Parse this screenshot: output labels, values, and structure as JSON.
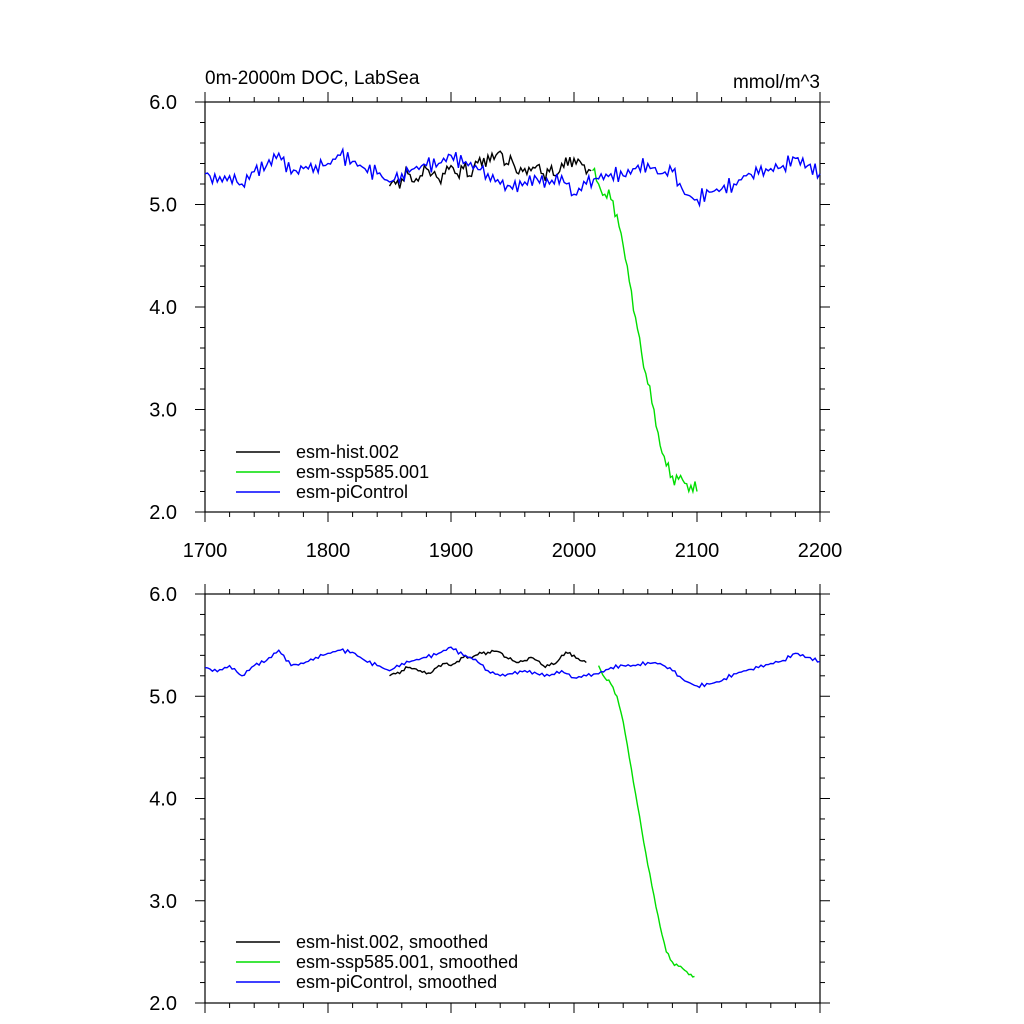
{
  "chart_data": [
    {
      "type": "line",
      "panel": "top",
      "title": "0m-2000m DOC, LabSea",
      "units": "mmol/m^3",
      "xlabel": "",
      "ylabel": "",
      "xlim": [
        1700,
        2200
      ],
      "ylim": [
        2.0,
        6.0
      ],
      "x_ticks": [
        1700,
        1800,
        1900,
        2000,
        2100,
        2200
      ],
      "x_tick_labels": [
        "1700",
        "1800",
        "1900",
        "2000",
        "2100",
        "2200"
      ],
      "y_ticks": [
        2.0,
        3.0,
        4.0,
        5.0,
        6.0
      ],
      "y_tick_labels": [
        "2.0",
        "3.0",
        "4.0",
        "5.0",
        "6.0"
      ],
      "legend_position": "bottom-left",
      "series": [
        {
          "name": "esm-hist.002",
          "color": "#000000",
          "x": [
            1850,
            1855,
            1860,
            1865,
            1870,
            1875,
            1880,
            1885,
            1890,
            1895,
            1900,
            1905,
            1910,
            1915,
            1920,
            1925,
            1930,
            1935,
            1940,
            1945,
            1950,
            1955,
            1960,
            1965,
            1970,
            1975,
            1980,
            1985,
            1990,
            1995,
            2000,
            2005,
            2010,
            2014
          ],
          "values": [
            5.18,
            5.2,
            5.25,
            5.3,
            5.22,
            5.28,
            5.35,
            5.3,
            5.25,
            5.3,
            5.38,
            5.3,
            5.35,
            5.28,
            5.42,
            5.38,
            5.48,
            5.44,
            5.52,
            5.4,
            5.42,
            5.3,
            5.35,
            5.33,
            5.38,
            5.3,
            5.32,
            5.28,
            5.4,
            5.38,
            5.45,
            5.42,
            5.3,
            5.33
          ]
        },
        {
          "name": "esm-ssp585.001",
          "color": "#00dd00",
          "x": [
            2015,
            2020,
            2025,
            2030,
            2035,
            2040,
            2045,
            2050,
            2055,
            2060,
            2065,
            2070,
            2075,
            2080,
            2085,
            2090,
            2095,
            2100
          ],
          "values": [
            5.33,
            5.2,
            5.1,
            5.05,
            4.9,
            4.6,
            4.25,
            3.9,
            3.55,
            3.25,
            3.0,
            2.65,
            2.45,
            2.35,
            2.32,
            2.28,
            2.26,
            2.2
          ]
        },
        {
          "name": "esm-piControl",
          "color": "#0000ff",
          "x": [
            1700,
            1710,
            1720,
            1730,
            1740,
            1750,
            1760,
            1770,
            1780,
            1790,
            1800,
            1810,
            1820,
            1830,
            1840,
            1850,
            1860,
            1870,
            1880,
            1890,
            1900,
            1910,
            1920,
            1930,
            1940,
            1950,
            1960,
            1970,
            1980,
            1990,
            2000,
            2010,
            2020,
            2030,
            2040,
            2050,
            2060,
            2070,
            2080,
            2090,
            2100,
            2110,
            2120,
            2130,
            2140,
            2150,
            2160,
            2170,
            2180,
            2190,
            2200
          ],
          "values": [
            5.3,
            5.22,
            5.28,
            5.2,
            5.32,
            5.38,
            5.5,
            5.3,
            5.35,
            5.38,
            5.4,
            5.48,
            5.42,
            5.35,
            5.3,
            5.22,
            5.3,
            5.35,
            5.38,
            5.4,
            5.48,
            5.4,
            5.38,
            5.3,
            5.2,
            5.15,
            5.22,
            5.25,
            5.2,
            5.28,
            5.1,
            5.2,
            5.25,
            5.3,
            5.28,
            5.35,
            5.4,
            5.3,
            5.32,
            5.1,
            5.05,
            5.12,
            5.15,
            5.2,
            5.28,
            5.3,
            5.35,
            5.38,
            5.45,
            5.38,
            5.3
          ]
        }
      ]
    },
    {
      "type": "line",
      "panel": "bottom",
      "xlim": [
        1700,
        2200
      ],
      "ylim": [
        2.0,
        6.0
      ],
      "y_ticks": [
        2.0,
        3.0,
        4.0,
        5.0,
        6.0
      ],
      "y_tick_labels": [
        "2.0",
        "3.0",
        "4.0",
        "5.0",
        "6.0"
      ],
      "x_ticks": [
        1700,
        1800,
        1900,
        2000,
        2100,
        2200
      ],
      "legend_position": "bottom-left",
      "series": [
        {
          "name": "esm-hist.002, smoothed",
          "color": "#000000",
          "x": [
            1850,
            1855,
            1860,
            1865,
            1870,
            1875,
            1880,
            1885,
            1890,
            1895,
            1900,
            1905,
            1910,
            1915,
            1920,
            1925,
            1930,
            1935,
            1940,
            1945,
            1950,
            1955,
            1960,
            1965,
            1970,
            1975,
            1980,
            1985,
            1990,
            1995,
            2000,
            2005,
            2010
          ],
          "values": [
            5.2,
            5.22,
            5.25,
            5.28,
            5.27,
            5.25,
            5.22,
            5.24,
            5.3,
            5.32,
            5.3,
            5.34,
            5.38,
            5.38,
            5.4,
            5.42,
            5.43,
            5.44,
            5.43,
            5.38,
            5.35,
            5.33,
            5.35,
            5.38,
            5.35,
            5.3,
            5.3,
            5.32,
            5.4,
            5.42,
            5.4,
            5.35,
            5.33
          ]
        },
        {
          "name": "esm-ssp585.001, smoothed",
          "color": "#00dd00",
          "x": [
            2020,
            2025,
            2030,
            2035,
            2040,
            2045,
            2050,
            2055,
            2060,
            2065,
            2070,
            2075,
            2080,
            2085,
            2090,
            2095,
            2098
          ],
          "values": [
            5.3,
            5.18,
            5.12,
            5.0,
            4.75,
            4.4,
            4.05,
            3.7,
            3.35,
            3.05,
            2.75,
            2.5,
            2.4,
            2.36,
            2.32,
            2.28,
            2.26
          ]
        },
        {
          "name": "esm-piControl, smoothed",
          "color": "#0000ff",
          "x": [
            1700,
            1710,
            1720,
            1730,
            1740,
            1750,
            1760,
            1770,
            1780,
            1790,
            1800,
            1810,
            1820,
            1830,
            1840,
            1850,
            1860,
            1870,
            1880,
            1890,
            1900,
            1910,
            1920,
            1930,
            1940,
            1950,
            1960,
            1970,
            1980,
            1990,
            2000,
            2010,
            2020,
            2030,
            2040,
            2050,
            2060,
            2070,
            2080,
            2090,
            2100,
            2110,
            2120,
            2130,
            2140,
            2150,
            2160,
            2170,
            2180,
            2190,
            2200
          ],
          "values": [
            5.28,
            5.24,
            5.3,
            5.2,
            5.3,
            5.35,
            5.45,
            5.3,
            5.32,
            5.38,
            5.42,
            5.45,
            5.43,
            5.35,
            5.3,
            5.25,
            5.32,
            5.35,
            5.38,
            5.42,
            5.48,
            5.4,
            5.36,
            5.25,
            5.2,
            5.22,
            5.25,
            5.22,
            5.2,
            5.25,
            5.18,
            5.2,
            5.22,
            5.28,
            5.3,
            5.3,
            5.33,
            5.32,
            5.25,
            5.15,
            5.1,
            5.12,
            5.15,
            5.22,
            5.25,
            5.28,
            5.32,
            5.35,
            5.42,
            5.38,
            5.34
          ]
        }
      ]
    }
  ]
}
